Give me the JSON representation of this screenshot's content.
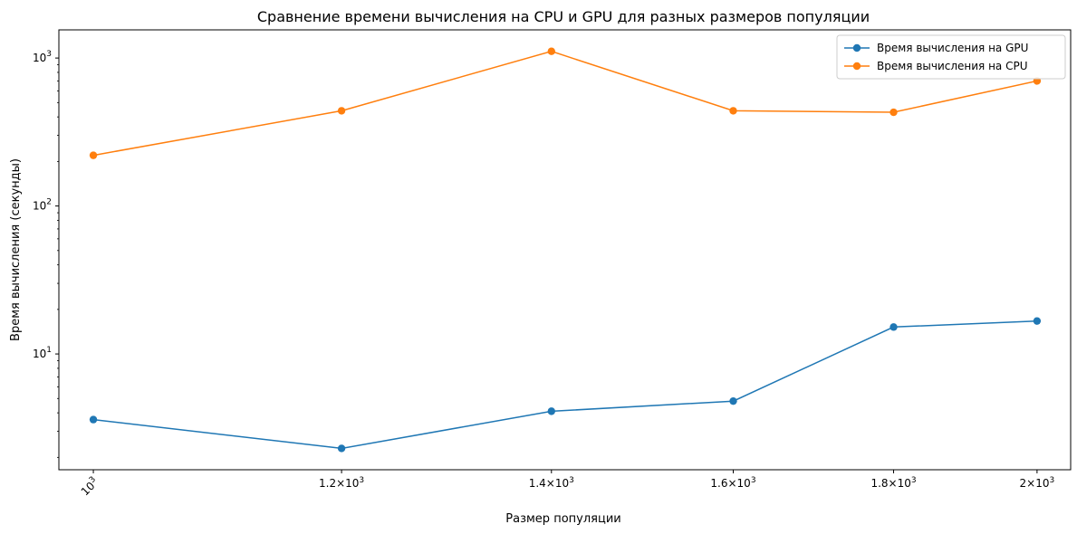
{
  "chart_data": {
    "type": "line",
    "title": "Сравнение времени вычисления на CPU и GPU для разных размеров популяции",
    "xlabel": "Размер популяции",
    "ylabel": "Время вычисления (секунды)",
    "x_scale": "log",
    "y_scale": "log",
    "xlim": [
      975,
      2050
    ],
    "ylim": [
      1.65,
      1550
    ],
    "x": [
      1000,
      1200,
      1400,
      1600,
      1800,
      2000
    ],
    "x_ticks": [
      {
        "value": 1000,
        "mantissa": "",
        "exponent": "3"
      },
      {
        "value": 1200,
        "mantissa": "1.2",
        "exponent": "3"
      },
      {
        "value": 1400,
        "mantissa": "1.4",
        "exponent": "3"
      },
      {
        "value": 1600,
        "mantissa": "1.6",
        "exponent": "3"
      },
      {
        "value": 1800,
        "mantissa": "1.8",
        "exponent": "3"
      },
      {
        "value": 2000,
        "mantissa": "2",
        "exponent": "3"
      }
    ],
    "y_ticks": [
      {
        "value": 10,
        "exponent": "1"
      },
      {
        "value": 100,
        "exponent": "2"
      },
      {
        "value": 1000,
        "exponent": "3"
      }
    ],
    "grid": false,
    "legend_position": "top-right",
    "series": [
      {
        "name": "Время вычисления на GPU",
        "color": "#1f77b4",
        "values": [
          3.6,
          2.3,
          4.1,
          4.8,
          15.2,
          16.7
        ]
      },
      {
        "name": "Время вычисления на CPU",
        "color": "#ff7f0e",
        "values": [
          220,
          440,
          1110,
          440,
          430,
          700
        ]
      }
    ]
  }
}
